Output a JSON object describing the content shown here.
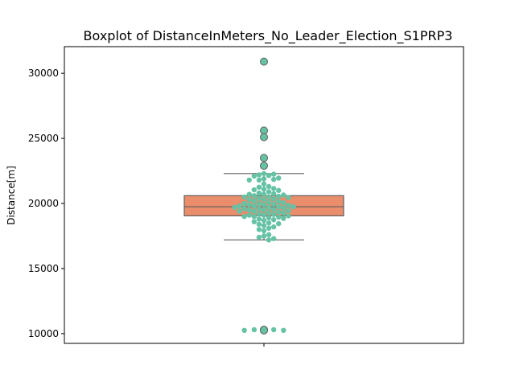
{
  "chart_data": {
    "type": "box",
    "title": "Boxplot of DistanceInMeters_No_Leader_Election_S1PRP3",
    "xlabel": "",
    "ylabel": "Distance[m]",
    "ylim": [
      9250,
      32050
    ],
    "yticks": [
      10000,
      15000,
      20000,
      25000,
      30000
    ],
    "yticklabels": [
      "10000",
      "15000",
      "20000",
      "25000",
      "30000"
    ],
    "grid": false,
    "box": {
      "whisker_low": 17200,
      "q1": 19050,
      "median": 19750,
      "q3": 20600,
      "whisker_high": 22300,
      "outliers": [
        30900,
        25600,
        25100,
        23500,
        22900,
        10300,
        10250
      ]
    },
    "swarm_values": [
      30900,
      25600,
      25100,
      23500,
      22900,
      22300,
      22250,
      22200,
      22150,
      22100,
      21950,
      21900,
      21850,
      21800,
      21800,
      21500,
      21300,
      21250,
      21150,
      21100,
      21050,
      21000,
      20900,
      20800,
      20750,
      20700,
      20700,
      20650,
      20600,
      20550,
      20500,
      20500,
      20450,
      20400,
      20350,
      20300,
      20300,
      20200,
      20150,
      20100,
      20050,
      20000,
      20000,
      19950,
      19900,
      19900,
      19850,
      19800,
      19800,
      19750,
      19750,
      19700,
      19700,
      19650,
      19600,
      19600,
      19550,
      19500,
      19500,
      19450,
      19400,
      19400,
      19350,
      19300,
      19250,
      19200,
      19150,
      19100,
      19100,
      19050,
      19000,
      19000,
      18950,
      18900,
      18850,
      18800,
      18750,
      18700,
      18600,
      18500,
      18450,
      18400,
      18300,
      18200,
      18100,
      18000,
      17900,
      17600,
      17500,
      17400,
      17300,
      17200,
      10350,
      10300,
      10300,
      10250,
      10250
    ],
    "colors": {
      "box_fill": "#e98d6b",
      "box_edge": "#5f5f5f",
      "point": "#66c2a5",
      "outlier_fill": "#66c2a5",
      "outlier_edge": "#5f5f5f"
    }
  }
}
